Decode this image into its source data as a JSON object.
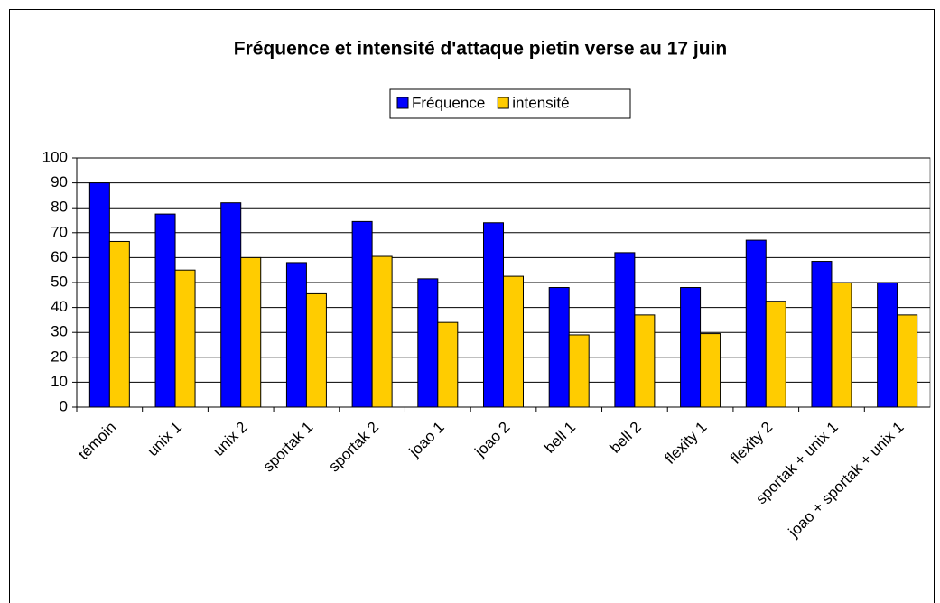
{
  "chart_data": {
    "type": "bar",
    "title": "Fréquence et intensité d'attaque pietin verse au 17 juin",
    "categories": [
      "témoin",
      "unix 1",
      "unix 2",
      "sportak 1",
      "sportak 2",
      "joao 1",
      "joao 2",
      "bell 1",
      "bell 2",
      "flexity 1",
      "flexity 2",
      "sportak + unix 1",
      "joao + sportak + unix 1"
    ],
    "series": [
      {
        "name": "Fréquence",
        "color": "#0000ff",
        "values": [
          90,
          77.5,
          82,
          58,
          74.5,
          51.5,
          74,
          48,
          62,
          48,
          67,
          58.5,
          50
        ]
      },
      {
        "name": "intensité",
        "color": "#ffcc00",
        "values": [
          66.5,
          55,
          60,
          45.5,
          60.5,
          34,
          52.5,
          29,
          37,
          29.5,
          42.5,
          50,
          37
        ]
      }
    ],
    "ylim": [
      0,
      100
    ],
    "yticks": [
      0,
      10,
      20,
      30,
      40,
      50,
      60,
      70,
      80,
      90,
      100
    ],
    "grid": true,
    "legend": "top"
  }
}
